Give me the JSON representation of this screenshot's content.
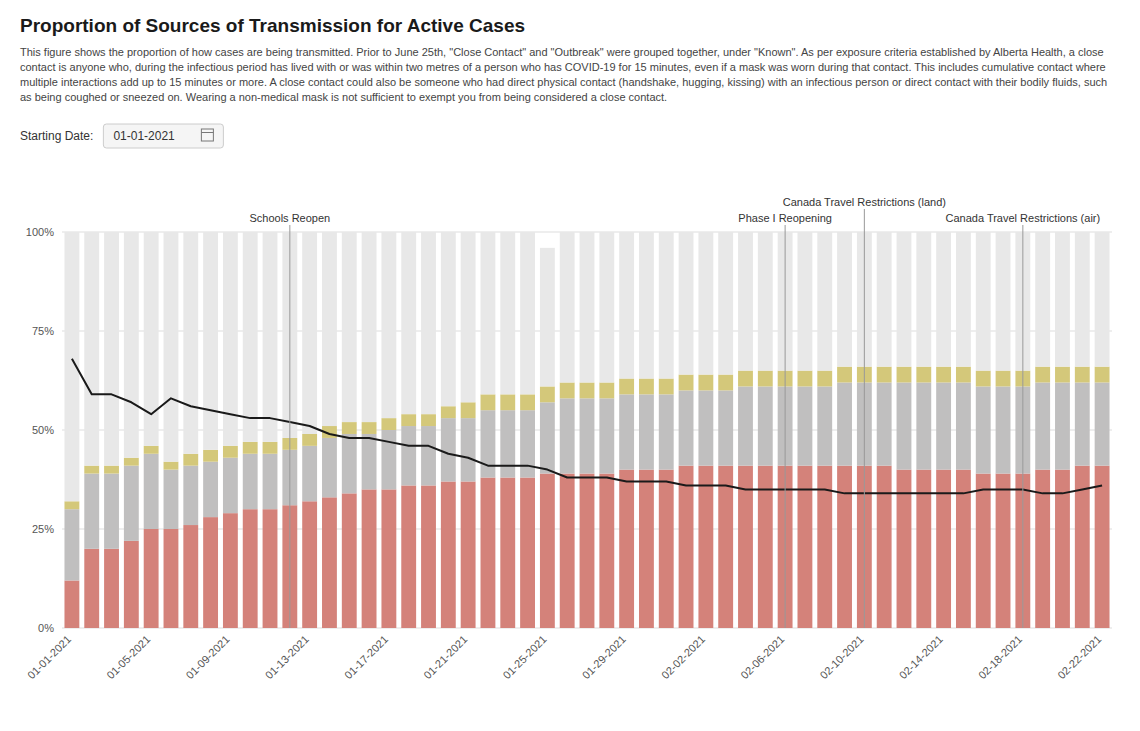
{
  "chart_data": {
    "type": "bar",
    "stacked": true,
    "grid": true,
    "title": "Proportion of Sources of Transmission for Active Cases",
    "subtitle": "This figure shows the proportion of how cases are being transmitted. Prior to June 25th, \"Close Contact\" and \"Outbreak\" were grouped together, under \"Known\". As per exposure criteria established by Alberta Health, a close\ncontact is anyone who, during the infectious period has lived with or was within two metres of a person who has COVID-19 for 15 minutes, even if a mask was worn during that contact. This includes cumulative contact where\nmultiple interactions add up to 15 minutes or more. A close contact could also be someone who had direct physical contact (handshake, hugging, kissing) with an infectious person or direct contact with their bodily fluids, such\nas being coughed or sneezed on. Wearing a non-medical mask is not sufficient to exempt you from being considered a close contact.",
    "categories": [
      "01-01-2021",
      null,
      null,
      null,
      "01-05-2021",
      null,
      null,
      null,
      "01-09-2021",
      null,
      null,
      null,
      "01-13-2021",
      null,
      null,
      null,
      "01-17-2021",
      null,
      null,
      null,
      "01-21-2021",
      null,
      null,
      null,
      "01-25-2021",
      null,
      null,
      null,
      "01-29-2021",
      null,
      null,
      null,
      "02-02-2021",
      null,
      null,
      null,
      "02-06-2021",
      null,
      null,
      null,
      "02-10-2021",
      null,
      null,
      null,
      "02-14-2021",
      null,
      null,
      null,
      "02-18-2021",
      null,
      null,
      null,
      "02-22-2021"
    ],
    "series": [
      {
        "color": "#d4827a",
        "values": [
          12,
          20,
          20,
          22,
          25,
          25,
          26,
          28,
          29,
          30,
          30,
          31,
          32,
          33,
          34,
          35,
          35,
          36,
          36,
          37,
          37,
          38,
          38,
          38,
          39,
          39,
          39,
          39,
          40,
          40,
          40,
          41,
          41,
          41,
          41,
          41,
          41,
          41,
          41,
          41,
          41,
          41,
          40,
          40,
          40,
          40,
          39,
          39,
          39,
          40,
          40,
          41,
          41
        ]
      },
      {
        "color": "#c0bfbf",
        "values": [
          18,
          19,
          19,
          19,
          19,
          15,
          15,
          14,
          14,
          14,
          14,
          14,
          14,
          15,
          15,
          14,
          15,
          15,
          15,
          16,
          16,
          17,
          17,
          17,
          18,
          19,
          19,
          19,
          19,
          19,
          19,
          19,
          19,
          19,
          20,
          20,
          20,
          20,
          20,
          21,
          21,
          21,
          22,
          22,
          22,
          22,
          22,
          22,
          22,
          22,
          22,
          21,
          21
        ]
      },
      {
        "color": "#d4c87a",
        "values": [
          2,
          2,
          2,
          2,
          2,
          2,
          3,
          3,
          3,
          3,
          3,
          3,
          3,
          3,
          3,
          3,
          3,
          3,
          3,
          3,
          4,
          4,
          4,
          4,
          4,
          4,
          4,
          4,
          4,
          4,
          4,
          4,
          4,
          4,
          4,
          4,
          4,
          4,
          4,
          4,
          4,
          4,
          4,
          4,
          4,
          4,
          4,
          4,
          4,
          4,
          4,
          4,
          4
        ]
      },
      {
        "color": "#e8e8e8",
        "values": [
          68,
          59,
          59,
          57,
          54,
          58,
          56,
          55,
          54,
          53,
          53,
          52,
          51,
          49,
          48,
          48,
          47,
          46,
          46,
          44,
          43,
          41,
          41,
          41,
          35,
          38,
          38,
          38,
          37,
          37,
          37,
          36,
          36,
          36,
          35,
          35,
          35,
          35,
          35,
          34,
          34,
          34,
          34,
          34,
          34,
          34,
          35,
          35,
          35,
          34,
          34,
          34,
          34
        ]
      },
      {
        "type": "line",
        "color": "#1a1a1a",
        "values": [
          68,
          59,
          59,
          57,
          54,
          58,
          56,
          55,
          54,
          53,
          53,
          52,
          51,
          49,
          48,
          48,
          47,
          46,
          46,
          44,
          43,
          41,
          41,
          41,
          40,
          38,
          38,
          38,
          37,
          37,
          37,
          36,
          36,
          36,
          35,
          35,
          35,
          35,
          35,
          34,
          34,
          34,
          34,
          34,
          34,
          34,
          35,
          35,
          35,
          34,
          34,
          35,
          36
        ]
      }
    ],
    "ylim": [
      0,
      100
    ],
    "yticks": [
      {
        "value": 0,
        "label": "0%"
      },
      {
        "value": 25,
        "label": "25%"
      },
      {
        "value": 50,
        "label": "50%"
      },
      {
        "value": 75,
        "label": "75%"
      },
      {
        "value": 100,
        "label": "100%"
      }
    ],
    "annotations": [
      {
        "x": 11,
        "text": "Schools Reopen"
      },
      {
        "x": 36,
        "text": "Phase I Reopening"
      },
      {
        "x": 40,
        "text": "Canada Travel Restrictions (land)"
      },
      {
        "x": 48,
        "text": "Canada Travel Restrictions (air)"
      },
      {
        "text": "Starting Date:"
      },
      {
        "text": "01-01-2021"
      }
    ]
  }
}
